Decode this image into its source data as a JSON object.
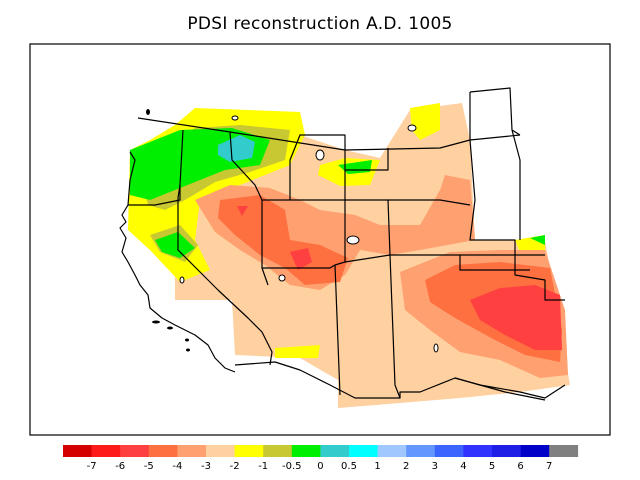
{
  "title": "PDSI reconstruction A.D. 1005",
  "legend": {
    "colors": [
      "#d40000",
      "#ff1a1a",
      "#ff4040",
      "#ff7040",
      "#ffa070",
      "#ffd0a0",
      "#ffff00",
      "#c8c832",
      "#00ee00",
      "#33cccc",
      "#00ffff",
      "#a0c8ff",
      "#6496ff",
      "#3c64ff",
      "#3232ff",
      "#1e1ee6",
      "#0000c8",
      "#808080"
    ],
    "labels": [
      "-7",
      "-6",
      "-5",
      "-4",
      "-3",
      "-2",
      "-1",
      "-0.5",
      "0",
      "0.5",
      "1",
      "2",
      "3",
      "4",
      "5",
      "6",
      "7"
    ]
  },
  "palette": {
    "red_dark": "#ff4040",
    "red_mid": "#ff7040",
    "salmon": "#ffa070",
    "peach": "#ffd0a0",
    "yellow": "#ffff00",
    "olive": "#c8c832",
    "green": "#00ee00",
    "teal": "#33cccc"
  }
}
